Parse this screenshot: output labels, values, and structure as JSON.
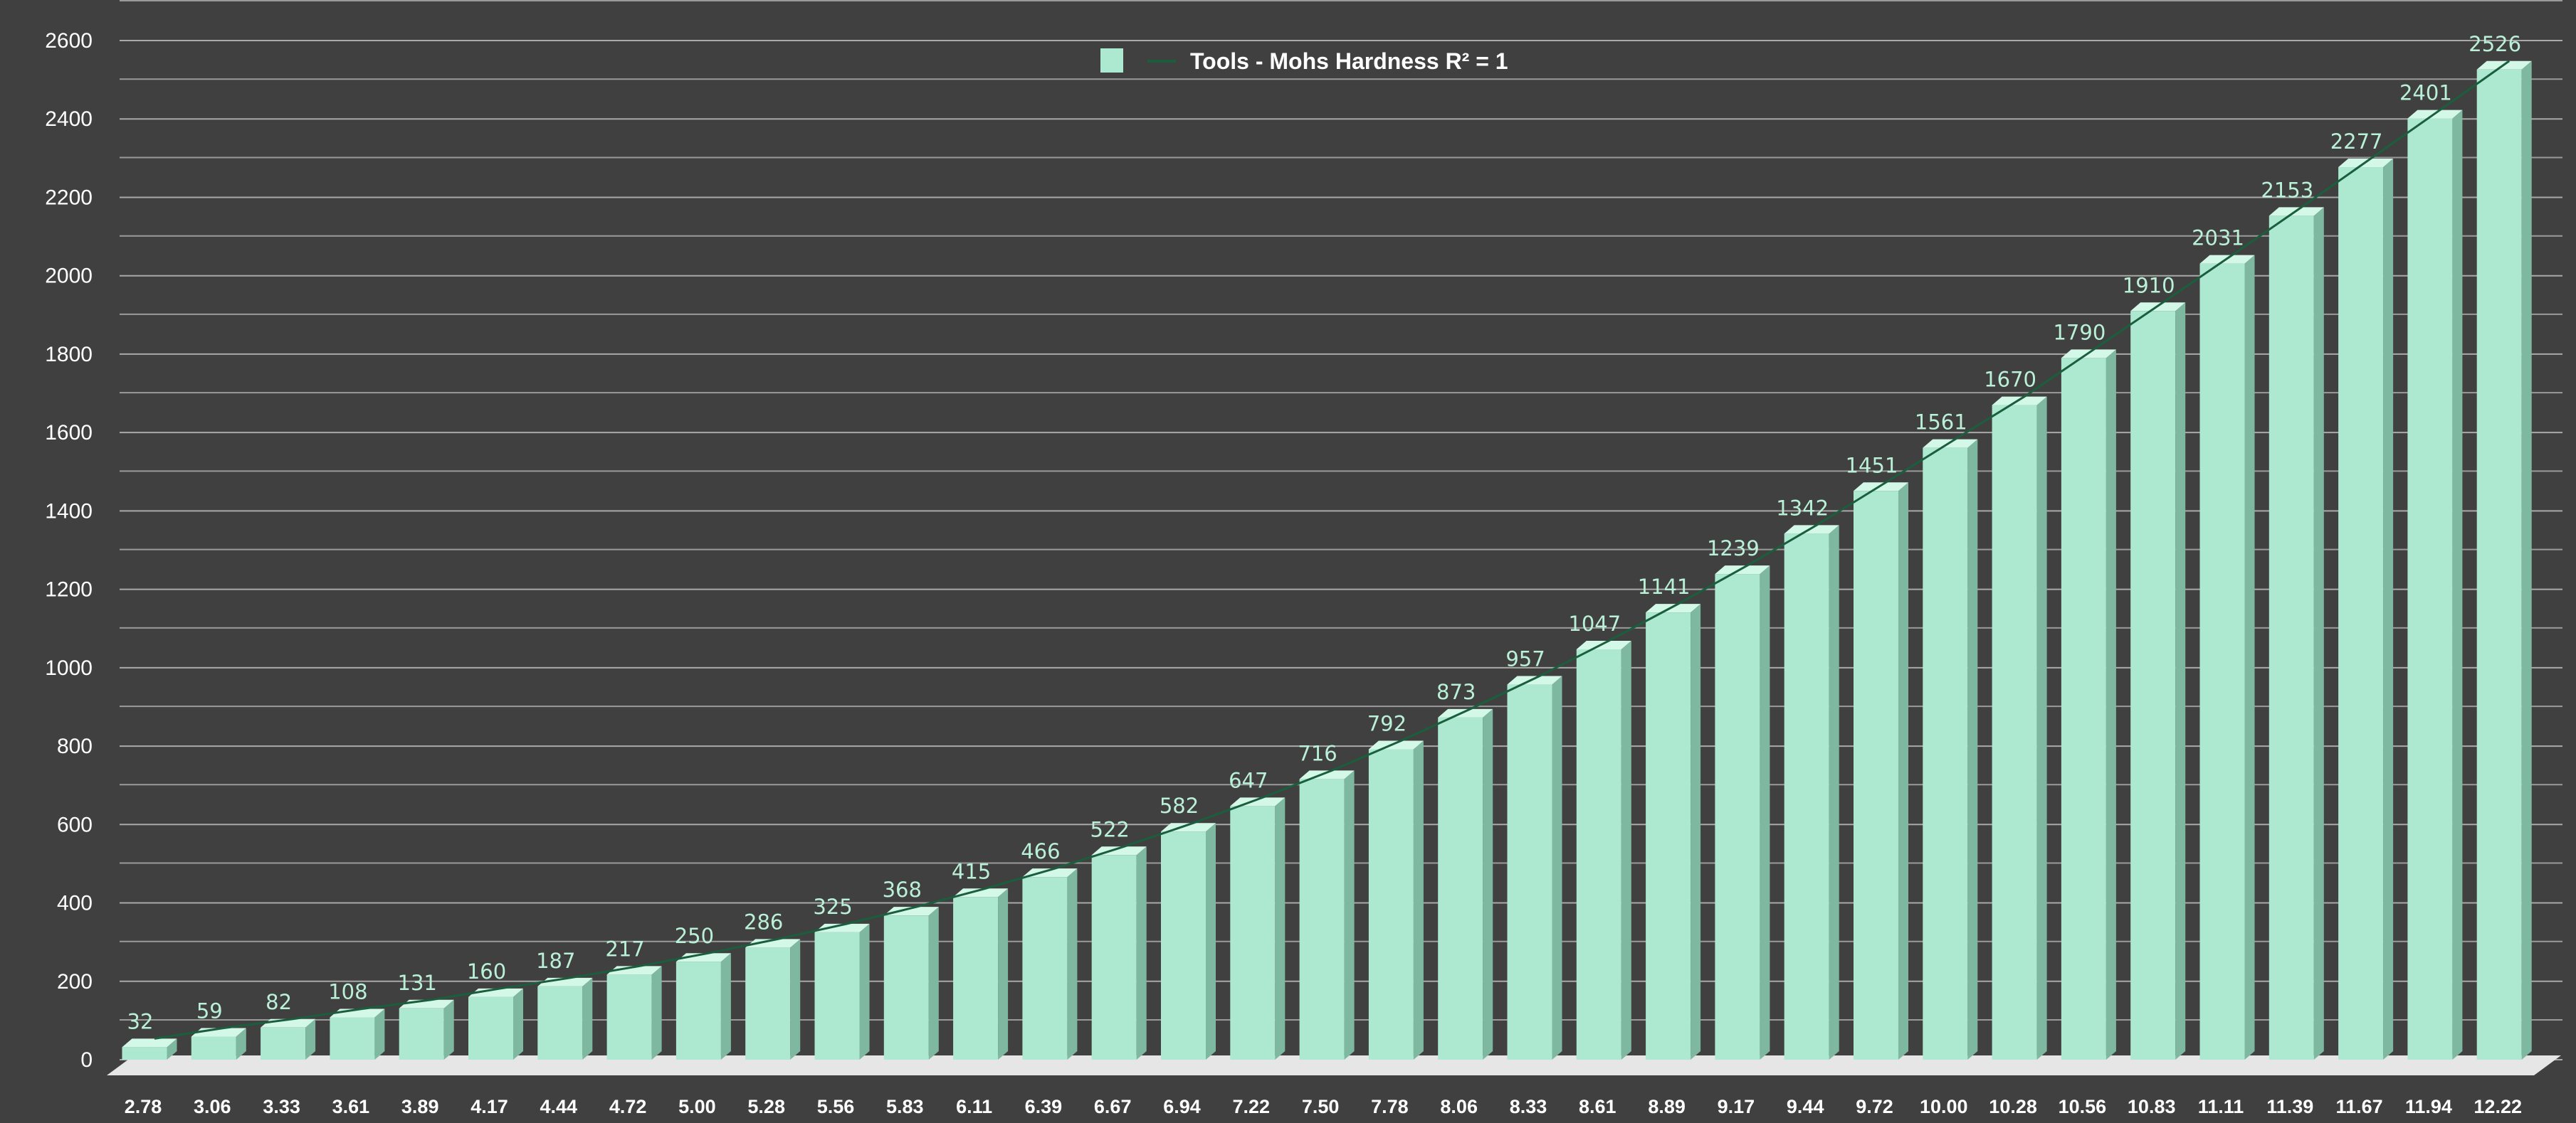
{
  "colors": {
    "background": "#404040",
    "bar_front": "#ace9d0",
    "bar_side": "#7fb8a0",
    "bar_top": "#d4f8e8",
    "gridline": "#9a9a9a",
    "trendline": "#1b5e3e",
    "data_label": "#b9f0d7",
    "tick_text": "#ffffff"
  },
  "chart_data": {
    "type": "bar",
    "style": "3d-column",
    "categories": [
      "2.78",
      "3.06",
      "3.33",
      "3.61",
      "3.89",
      "4.17",
      "4.44",
      "4.72",
      "5.00",
      "5.28",
      "5.56",
      "5.83",
      "6.11",
      "6.39",
      "6.67",
      "6.94",
      "7.22",
      "7.50",
      "7.78",
      "8.06",
      "8.33",
      "8.61",
      "8.89",
      "9.17",
      "9.44",
      "9.72",
      "10.00",
      "10.28",
      "10.56",
      "10.83",
      "11.11",
      "11.39",
      "11.67",
      "11.94",
      "12.22"
    ],
    "series": [
      {
        "name": "Tools - Mohs Hardness",
        "values": [
          32,
          59,
          82,
          108,
          131,
          160,
          187,
          217,
          250,
          286,
          325,
          368,
          415,
          466,
          522,
          582,
          647,
          716,
          792,
          873,
          957,
          1047,
          1141,
          1239,
          1342,
          1451,
          1561,
          1670,
          1790,
          1910,
          2031,
          2153,
          2277,
          2401,
          2526
        ]
      }
    ],
    "data_labels": [
      "32",
      "59",
      "82",
      "108",
      "131",
      "160",
      "187",
      "217",
      "250",
      "286",
      "325",
      "368",
      "415",
      "466",
      "522",
      "582",
      "647",
      "716",
      "792",
      "873",
      "957",
      "1047",
      "1141",
      "1239",
      "1342",
      "1451",
      "1561",
      "1670",
      "1790",
      "1910",
      "2031",
      "2153",
      "2277",
      "2401",
      "2526"
    ],
    "trendline": {
      "type": "polynomial",
      "label": "R² = 1"
    },
    "legend": {
      "position": "top-center",
      "entries": [
        "Tools - Mohs Hardness",
        "R² = 1"
      ]
    },
    "y_ticks": [
      "0",
      "200",
      "400",
      "600",
      "800",
      "1000",
      "1200",
      "1400",
      "1600",
      "1800",
      "2000",
      "2200",
      "2400",
      "2600"
    ],
    "ylim": [
      0,
      2600
    ],
    "grid": true,
    "title": "",
    "xlabel": "",
    "ylabel": ""
  }
}
